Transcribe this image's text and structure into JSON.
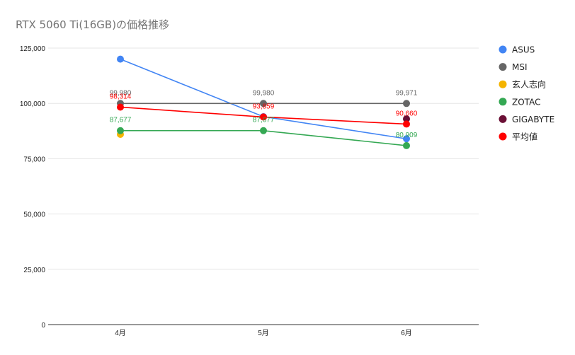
{
  "chart_data": {
    "type": "line",
    "title": "RTX 5060 Ti(16GB)の価格推移",
    "xlabel": "",
    "ylabel": "",
    "categories": [
      "4月",
      "5月",
      "6月"
    ],
    "ylim": [
      0,
      125000
    ],
    "yticks": [
      0,
      25000,
      50000,
      75000,
      100000,
      125000
    ],
    "ytick_labels": [
      "0",
      "25,000",
      "50,000",
      "75,000",
      "100,000",
      "125,000"
    ],
    "grid": true,
    "legend_position": "right",
    "series": [
      {
        "name": "ASUS",
        "color": "#4285F4",
        "values": [
          120000,
          94000,
          84000
        ],
        "labels": [
          null,
          null,
          null
        ]
      },
      {
        "name": "MSI",
        "color": "#666666",
        "values": [
          99980,
          99980,
          99971
        ],
        "labels": [
          "99,980",
          "99,980",
          "99,971"
        ]
      },
      {
        "name": "玄人志向",
        "color": "#F4B400",
        "values": [
          86000,
          null,
          null
        ],
        "labels": [
          null,
          null,
          null
        ]
      },
      {
        "name": "ZOTAC",
        "color": "#34A853",
        "values": [
          87677,
          87677,
          80909
        ],
        "labels": [
          "87,677",
          "87,677",
          "80,909"
        ]
      },
      {
        "name": "GIGABYTE",
        "color": "#6B1036",
        "values": [
          null,
          null,
          93000
        ],
        "labels": [
          null,
          null,
          null
        ]
      },
      {
        "name": "平均値",
        "color": "#FF0000",
        "values": [
          98314,
          93859,
          90660
        ],
        "labels": [
          "98,314",
          "93,859",
          "90,660"
        ]
      }
    ]
  }
}
